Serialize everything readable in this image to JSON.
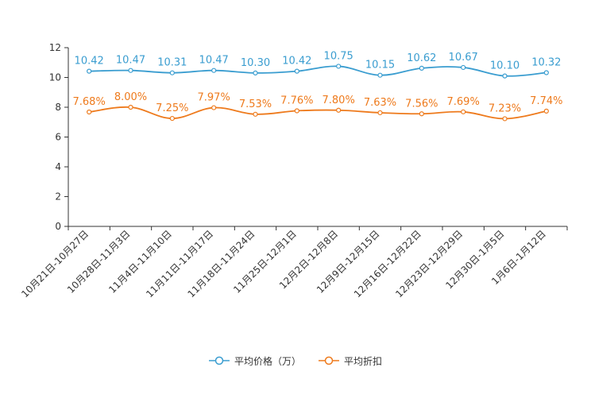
{
  "chart_data": {
    "type": "line",
    "title": "",
    "xlabel": "",
    "ylabel": "",
    "ylim": [
      0,
      12
    ],
    "yticks": [
      "0",
      "2",
      "4",
      "6",
      "8",
      "10",
      "12"
    ],
    "categories": [
      "10月21日-10月27日",
      "10月28日-11月3日",
      "11月4日-11月10日",
      "11月11日-11月17日",
      "11月18日-11月24日",
      "11月25日-12月1日",
      "12月2日-12月8日",
      "12月9日-12月15日",
      "12月16日-12月22日",
      "12月23日-12月29日",
      "12月30日-1月5日",
      "1月6日-1月12日"
    ],
    "series": [
      {
        "name": "平均价格（万）",
        "color": "#3a9dd0",
        "values": [
          10.42,
          10.47,
          10.31,
          10.47,
          10.3,
          10.42,
          10.75,
          10.15,
          10.62,
          10.67,
          10.1,
          10.32
        ],
        "labels": [
          "10.42",
          "10.47",
          "10.31",
          "10.47",
          "10.30",
          "10.42",
          "10.75",
          "10.15",
          "10.62",
          "10.67",
          "10.10",
          "10.32"
        ]
      },
      {
        "name": "平均折扣",
        "color": "#ee7a1c",
        "values": [
          7.68,
          8.0,
          7.25,
          7.97,
          7.53,
          7.76,
          7.8,
          7.63,
          7.56,
          7.69,
          7.23,
          7.74
        ],
        "labels": [
          "7.68%",
          "8.00%",
          "7.25%",
          "7.97%",
          "7.53%",
          "7.76%",
          "7.80%",
          "7.63%",
          "7.56%",
          "7.69%",
          "7.23%",
          "7.74%"
        ]
      }
    ],
    "legend_position": "bottom-center",
    "grid": false
  }
}
